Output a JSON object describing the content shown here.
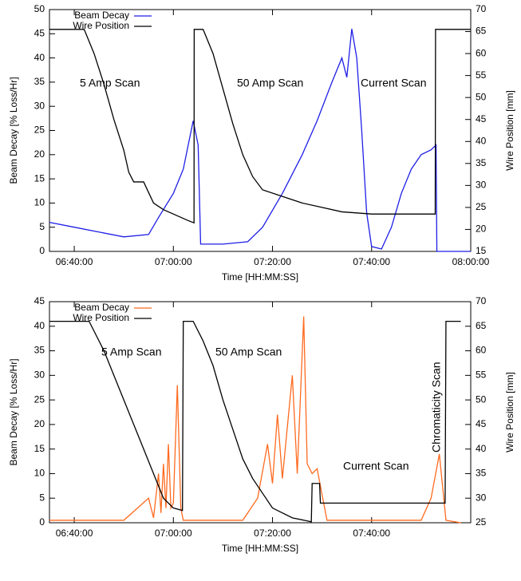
{
  "chart_data": [
    {
      "type": "line",
      "xlabel": "Time [HH:MM:SS]",
      "ylabel": "Beam Decay [% Loss/Hr]",
      "y2label": "Wire Position [mm]",
      "xlim": [
        "06:35:00",
        "08:00:00"
      ],
      "xticks": [
        "06:40:00",
        "07:00:00",
        "07:20:00",
        "07:40:00",
        "08:00:00"
      ],
      "ylim": [
        0,
        50
      ],
      "yticks": [
        0,
        5,
        10,
        15,
        20,
        25,
        30,
        35,
        40,
        45,
        50
      ],
      "y2lim": [
        15,
        70
      ],
      "y2ticks": [
        15,
        20,
        25,
        30,
        35,
        40,
        45,
        50,
        55,
        60,
        65,
        70
      ],
      "grid": false,
      "legend": "top left",
      "annotations": [
        "5 Amp Scan",
        "50 Amp Scan",
        "Current Scan"
      ],
      "series": [
        {
          "name": "Beam Decay",
          "color": "#1f1fe6",
          "x": [
            "06:35:00",
            "06:40:00",
            "06:45:00",
            "06:50:00",
            "06:55:00",
            "06:57:00",
            "07:00:00",
            "07:02:00",
            "07:03:00",
            "07:04:00",
            "07:05:00",
            "07:05:30",
            "07:10:00",
            "07:15:00",
            "07:18:00",
            "07:22:00",
            "07:26:00",
            "07:29:00",
            "07:32:00",
            "07:34:00",
            "07:35:00",
            "07:36:00",
            "07:37:00",
            "07:38:00",
            "07:39:00",
            "07:40:00",
            "07:42:00",
            "07:44:00",
            "07:46:00",
            "07:48:00",
            "07:50:00",
            "07:52:00",
            "07:53:00",
            "07:53:10",
            "08:00:00"
          ],
          "values": [
            6,
            5,
            4,
            3,
            3.5,
            7,
            12,
            17,
            22,
            27,
            22,
            1.5,
            1.5,
            2,
            5,
            12,
            20,
            27,
            35,
            40,
            36,
            46,
            40,
            25,
            8,
            1,
            0.5,
            5,
            12,
            17,
            20,
            21,
            22,
            0,
            0
          ]
        },
        {
          "name": "Wire Position",
          "color": "#000000",
          "axis": "y2",
          "x": [
            "06:35:00",
            "06:42:00",
            "06:44:00",
            "06:46:00",
            "06:48:00",
            "06:50:00",
            "06:51:00",
            "06:52:00",
            "06:54:00",
            "06:56:00",
            "06:58:00",
            "07:00:00",
            "07:03:00",
            "07:04:10",
            "07:04:12",
            "07:06:00",
            "07:08:00",
            "07:10:00",
            "07:12:00",
            "07:14:00",
            "07:16:00",
            "07:18:00",
            "07:22:00",
            "07:26:00",
            "07:30:00",
            "07:34:00",
            "07:40:00",
            "07:52:50",
            "07:52:54",
            "08:00:00"
          ],
          "values": [
            65.5,
            65.5,
            60,
            53,
            45,
            38,
            33,
            30.8,
            30.8,
            26,
            24.5,
            23.5,
            22,
            21.5,
            65.5,
            65.5,
            60,
            52,
            44,
            37,
            32,
            29,
            27.5,
            26,
            25,
            24,
            23.5,
            23.5,
            65.5,
            65.5
          ]
        }
      ]
    },
    {
      "type": "line",
      "xlabel": "Time [HH:MM:SS]",
      "ylabel": "Beam Decay [% Loss/Hr]",
      "y2label": "Wire Position [mm]",
      "xlim": [
        "06:35:00",
        "08:00:00"
      ],
      "xticks": [
        "06:40:00",
        "07:00:00",
        "07:20:00",
        "07:40:00"
      ],
      "ylim": [
        0,
        45
      ],
      "yticks": [
        0,
        5,
        10,
        15,
        20,
        25,
        30,
        35,
        40,
        45
      ],
      "y2lim": [
        25,
        70
      ],
      "y2ticks": [
        25,
        30,
        35,
        40,
        45,
        50,
        55,
        60,
        65,
        70
      ],
      "grid": false,
      "legend": "top left",
      "annotations": [
        "5 Amp Scan",
        "50 Amp Scan",
        "Current Scan",
        "Chromaticity Scan"
      ],
      "series": [
        {
          "name": "Beam Decay",
          "color": "#ff6a1f",
          "x": [
            "06:35:00",
            "06:50:00",
            "06:55:00",
            "06:56:00",
            "06:57:00",
            "06:57:30",
            "06:58:00",
            "06:58:30",
            "06:59:00",
            "06:59:30",
            "07:00:00",
            "07:00:48",
            "07:01:30",
            "07:02:00",
            "07:14:00",
            "07:17:00",
            "07:19:00",
            "07:20:00",
            "07:21:00",
            "07:22:00",
            "07:24:00",
            "07:25:00",
            "07:26:18",
            "07:27:00",
            "07:28:00",
            "07:29:00",
            "07:31:00",
            "07:50:00",
            "07:52:00",
            "07:53:40",
            "07:55:00",
            "07:58:00"
          ],
          "values": [
            0.5,
            0.5,
            5,
            1,
            10,
            2,
            12,
            3,
            16,
            3,
            4,
            28,
            3,
            0.5,
            0.5,
            5,
            16,
            8,
            22,
            9,
            30,
            10,
            42,
            12,
            10,
            11,
            0.5,
            0.5,
            5,
            14,
            0.5,
            0
          ]
        },
        {
          "name": "Wire Position",
          "color": "#000000",
          "axis": "y2",
          "x": [
            "06:35:00",
            "06:43:00",
            "06:46:00",
            "06:48:00",
            "06:50:00",
            "06:52:00",
            "06:54:00",
            "06:56:00",
            "06:58:00",
            "07:00:00",
            "07:01:50",
            "07:02:00",
            "07:04:00",
            "07:06:00",
            "07:08:00",
            "07:10:00",
            "07:12:00",
            "07:14:00",
            "07:16:00",
            "07:18:00",
            "07:20:00",
            "07:24:00",
            "07:27:50",
            "07:28:00",
            "07:29:30",
            "07:29:40",
            "07:54:50",
            "07:55:00",
            "07:58:00"
          ],
          "values": [
            66,
            66,
            60,
            55,
            50,
            45,
            40,
            35,
            30,
            28,
            27.5,
            66,
            66,
            62,
            57,
            50,
            44,
            38,
            34,
            31,
            28,
            26,
            25.2,
            33,
            33,
            29,
            29,
            66,
            66
          ]
        }
      ]
    }
  ]
}
